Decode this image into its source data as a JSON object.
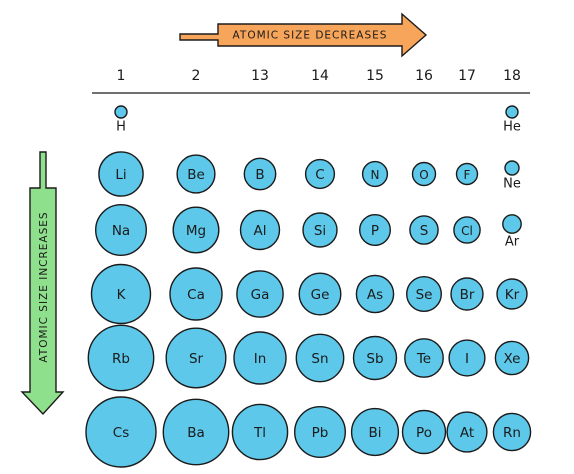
{
  "top_arrow": {
    "label": "ATOMIC SIZE  DECREASES",
    "color": "#f7a55a"
  },
  "side_arrow": {
    "label": "ATOMIC SIZE  INCREASES",
    "color": "#8fe08c"
  },
  "atom_color": "#5dc8ea",
  "groups": [
    "1",
    "2",
    "13",
    "14",
    "15",
    "16",
    "17",
    "18"
  ],
  "periods": [
    {
      "atoms": [
        {
          "symbol": "H",
          "group": "1",
          "label_below": true,
          "size": 1
        },
        {
          "symbol": "He",
          "group": "18",
          "label_below": true,
          "size": 1
        }
      ]
    },
    {
      "atoms": [
        {
          "symbol": "Li",
          "group": "1",
          "size": 6
        },
        {
          "symbol": "Be",
          "group": "2",
          "size": 5
        },
        {
          "symbol": "B",
          "group": "13",
          "size": 4
        },
        {
          "symbol": "C",
          "group": "14",
          "size": 3.6
        },
        {
          "symbol": "N",
          "group": "15",
          "size": 3
        },
        {
          "symbol": "O",
          "group": "16",
          "size": 2.7
        },
        {
          "symbol": "F",
          "group": "17",
          "size": 2.4
        },
        {
          "symbol": "Ne",
          "group": "18",
          "label_below": true,
          "size": 1.3
        }
      ]
    },
    {
      "atoms": [
        {
          "symbol": "Na",
          "group": "1",
          "size": 7
        },
        {
          "symbol": "Mg",
          "group": "2",
          "size": 6.2
        },
        {
          "symbol": "Al",
          "group": "13",
          "size": 5.2
        },
        {
          "symbol": "Si",
          "group": "14",
          "size": 4.4
        },
        {
          "symbol": "P",
          "group": "15",
          "size": 3.9
        },
        {
          "symbol": "S",
          "group": "16",
          "size": 3.5
        },
        {
          "symbol": "Cl",
          "group": "17",
          "size": 3.2
        },
        {
          "symbol": "Ar",
          "group": "18",
          "label_below": true,
          "size": 2
        }
      ]
    },
    {
      "atoms": [
        {
          "symbol": "K",
          "group": "1",
          "size": 8.3
        },
        {
          "symbol": "Ca",
          "group": "2",
          "size": 7.2
        },
        {
          "symbol": "Ga",
          "group": "13",
          "size": 6.3
        },
        {
          "symbol": "Ge",
          "group": "14",
          "size": 5.6
        },
        {
          "symbol": "As",
          "group": "15",
          "size": 4.9
        },
        {
          "symbol": "Se",
          "group": "16",
          "size": 4.5
        },
        {
          "symbol": "Br",
          "group": "17",
          "size": 4.1
        },
        {
          "symbol": "Kr",
          "group": "18",
          "size": 3.8
        }
      ]
    },
    {
      "atoms": [
        {
          "symbol": "Rb",
          "group": "1",
          "size": 9.3
        },
        {
          "symbol": "Sr",
          "group": "2",
          "size": 8.4
        },
        {
          "symbol": "In",
          "group": "13",
          "size": 7.2
        },
        {
          "symbol": "Sn",
          "group": "14",
          "size": 6.5
        },
        {
          "symbol": "Sb",
          "group": "15",
          "size": 5.8
        },
        {
          "symbol": "Te",
          "group": "16",
          "size": 5.1
        },
        {
          "symbol": "I",
          "group": "17",
          "size": 4.7
        },
        {
          "symbol": "Xe",
          "group": "18",
          "size": 4.3
        }
      ]
    },
    {
      "atoms": [
        {
          "symbol": "Cs",
          "group": "1",
          "size": 10
        },
        {
          "symbol": "Ba",
          "group": "2",
          "size": 9.3
        },
        {
          "symbol": "Tl",
          "group": "13",
          "size": 7.7
        },
        {
          "symbol": "Pb",
          "group": "14",
          "size": 7
        },
        {
          "symbol": "Bi",
          "group": "15",
          "size": 6.4
        },
        {
          "symbol": "Po",
          "group": "16",
          "size": 5.8
        },
        {
          "symbol": "At",
          "group": "17",
          "size": 5.3
        },
        {
          "symbol": "Rn",
          "group": "18",
          "size": 4.9
        }
      ]
    }
  ]
}
